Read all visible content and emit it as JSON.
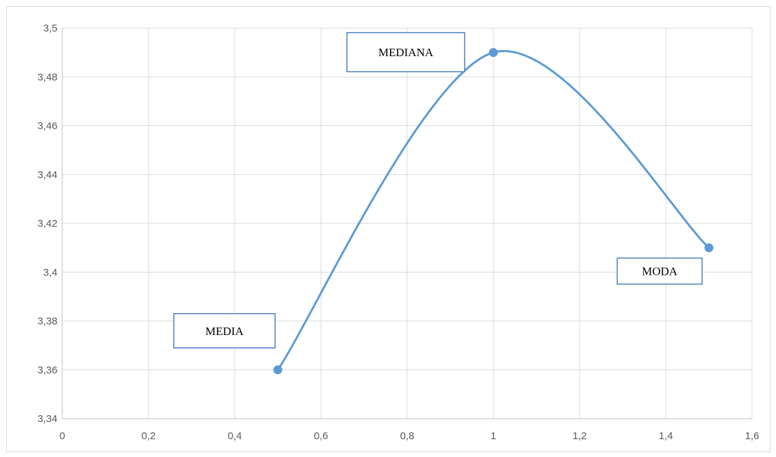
{
  "chart_data": {
    "type": "scatter",
    "title": "",
    "xlabel": "",
    "ylabel": "",
    "smooth_line": true,
    "grid": true,
    "xlim": [
      0,
      1.6
    ],
    "ylim": [
      3.34,
      3.5
    ],
    "x_ticks": [
      "0",
      "0,2",
      "0,4",
      "0,6",
      "0,8",
      "1",
      "1,2",
      "1,4",
      "1,6"
    ],
    "y_ticks": [
      "3,34",
      "3,36",
      "3,38",
      "3,4",
      "3,42",
      "3,44",
      "3,46",
      "3,48",
      "3,5"
    ],
    "series": [
      {
        "color": "#5b9bd5",
        "points": [
          {
            "x": 0.5,
            "y": 3.36,
            "label": "MEDIA"
          },
          {
            "x": 1.0,
            "y": 3.49,
            "label": "MEDIANA"
          },
          {
            "x": 1.5,
            "y": 3.41,
            "label": "MODA"
          }
        ]
      }
    ],
    "annotation_box_color": "#4a7ebb"
  }
}
